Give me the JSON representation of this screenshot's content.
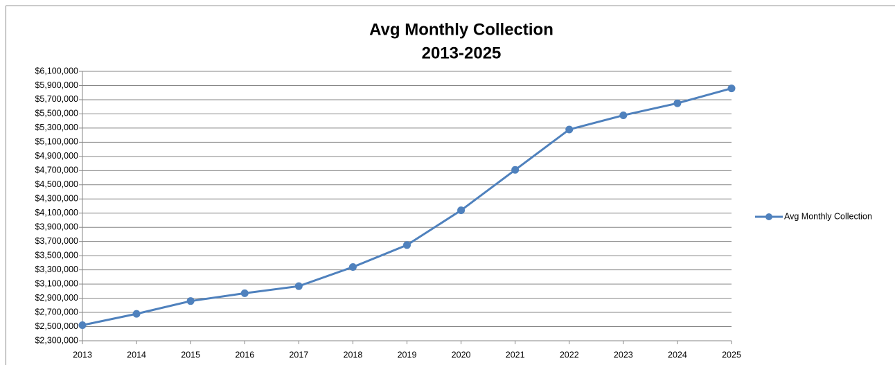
{
  "chart_data": {
    "type": "line",
    "title": "Avg Monthly Collection",
    "subtitle": "2013-2025",
    "x": [
      2013,
      2014,
      2015,
      2016,
      2017,
      2018,
      2019,
      2020,
      2021,
      2022,
      2023,
      2024,
      2025
    ],
    "series": [
      {
        "name": "Avg Monthly Collection",
        "color": "#4f81bd",
        "values": [
          2520000,
          2680000,
          2860000,
          2970000,
          3070000,
          3340000,
          3650000,
          4140000,
          4710000,
          5280000,
          5480000,
          5650000,
          5860000
        ]
      }
    ],
    "xlim": [
      2013,
      2025
    ],
    "xticks": [
      2013,
      2014,
      2015,
      2016,
      2017,
      2018,
      2019,
      2020,
      2021,
      2022,
      2023,
      2024,
      2025
    ],
    "ylim": [
      2300000,
      6100000
    ],
    "yticks": [
      {
        "value": 2300000,
        "label": "$2,300,000"
      },
      {
        "value": 2500000,
        "label": "$2,500,000"
      },
      {
        "value": 2700000,
        "label": "$2,700,000"
      },
      {
        "value": 2900000,
        "label": "$2,900,000"
      },
      {
        "value": 3100000,
        "label": "$3,100,000"
      },
      {
        "value": 3300000,
        "label": "$3,300,000"
      },
      {
        "value": 3500000,
        "label": "$3,500,000"
      },
      {
        "value": 3700000,
        "label": "$3,700,000"
      },
      {
        "value": 3900000,
        "label": "$3,900,000"
      },
      {
        "value": 4100000,
        "label": "$4,100,000"
      },
      {
        "value": 4300000,
        "label": "$4,300,000"
      },
      {
        "value": 4500000,
        "label": "$4,500,000"
      },
      {
        "value": 4700000,
        "label": "$4,700,000"
      },
      {
        "value": 4900000,
        "label": "$4,900,000"
      },
      {
        "value": 5100000,
        "label": "$5,100,000"
      },
      {
        "value": 5300000,
        "label": "$5,300,000"
      },
      {
        "value": 5500000,
        "label": "$5,500,000"
      },
      {
        "value": 5700000,
        "label": "$5,700,000"
      },
      {
        "value": 5900000,
        "label": "$5,900,000"
      },
      {
        "value": 6100000,
        "label": "$6,100,000"
      }
    ],
    "grid": true,
    "legend": "right"
  }
}
